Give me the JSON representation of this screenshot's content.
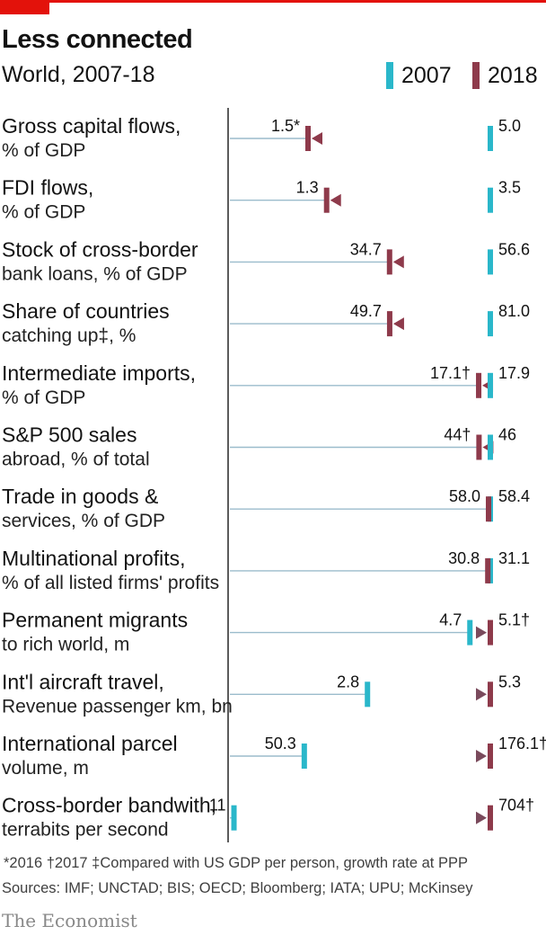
{
  "header": {
    "title": "Less connected",
    "subtitle": "World, 2007-18"
  },
  "legend": {
    "items": [
      {
        "label": "2007",
        "color": "#2ab7ca"
      },
      {
        "label": "2018",
        "color": "#8e3a4b"
      }
    ]
  },
  "chart_data": {
    "type": "dumbbell",
    "title": "Less connected",
    "subtitle": "World, 2007-18",
    "series": [
      {
        "name": "2007",
        "color": "#2ab7ca"
      },
      {
        "name": "2018",
        "color": "#8e3a4b"
      }
    ],
    "note": "each row on its own scale; arrow points from 2007 value to 2018 value",
    "rows": [
      {
        "line1": "Gross capital flows,",
        "line2": "% of GDP",
        "v2007": 5.0,
        "v2018": 1.5,
        "l2007": "5.0",
        "l2018": "1.5*"
      },
      {
        "line1": "FDI flows,",
        "line2": "% of GDP",
        "v2007": 3.5,
        "v2018": 1.3,
        "l2007": "3.5",
        "l2018": "1.3"
      },
      {
        "line1": "Stock of cross-border",
        "line2": "bank loans, % of GDP",
        "v2007": 56.6,
        "v2018": 34.7,
        "l2007": "56.6",
        "l2018": "34.7"
      },
      {
        "line1": "Share of countries",
        "line2": "catching up‡, %",
        "v2007": 81.0,
        "v2018": 49.7,
        "l2007": "81.0",
        "l2018": "49.7"
      },
      {
        "line1": "Intermediate imports,",
        "line2": "% of GDP",
        "v2007": 17.9,
        "v2018": 17.1,
        "l2007": "17.9",
        "l2018": "17.1†"
      },
      {
        "line1": "S&P 500 sales",
        "line2": "abroad, % of total",
        "v2007": 46,
        "v2018": 44,
        "l2007": "46",
        "l2018": "44†"
      },
      {
        "line1": "Trade in goods &",
        "line2": "services, % of GDP",
        "v2007": 58.4,
        "v2018": 58.0,
        "l2007": "58.4",
        "l2018": "58.0"
      },
      {
        "line1": "Multinational profits,",
        "line2": "% of all listed firms' profits",
        "v2007": 31.1,
        "v2018": 30.8,
        "l2007": "31.1",
        "l2018": "30.8"
      },
      {
        "line1": "Permanent migrants",
        "line2": "to rich world, m",
        "v2007": 4.7,
        "v2018": 5.1,
        "l2007": "4.7",
        "l2018": "5.1†"
      },
      {
        "line1": "Int'l aircraft travel,",
        "line2": "Revenue passenger km, bn",
        "v2007": 2.8,
        "v2018": 5.3,
        "l2007": "2.8",
        "l2018": "5.3"
      },
      {
        "line1": "International parcel",
        "line2": "volume, m",
        "v2007": 50.3,
        "v2018": 176.1,
        "l2007": "50.3",
        "l2018": "176.1†"
      },
      {
        "line1": "Cross-border bandwith,",
        "line2": "terrabits per second",
        "v2007": 11,
        "v2018": 704,
        "l2007": "11",
        "l2018": "704†"
      }
    ]
  },
  "footer": {
    "footnote": "*2016  †2017  ‡Compared with US GDP per person, growth rate at PPP",
    "sources": "Sources: IMF; UNCTAD; BIS; OECD; Bloomberg; IATA; UPU; McKinsey",
    "brand": "The Economist"
  }
}
